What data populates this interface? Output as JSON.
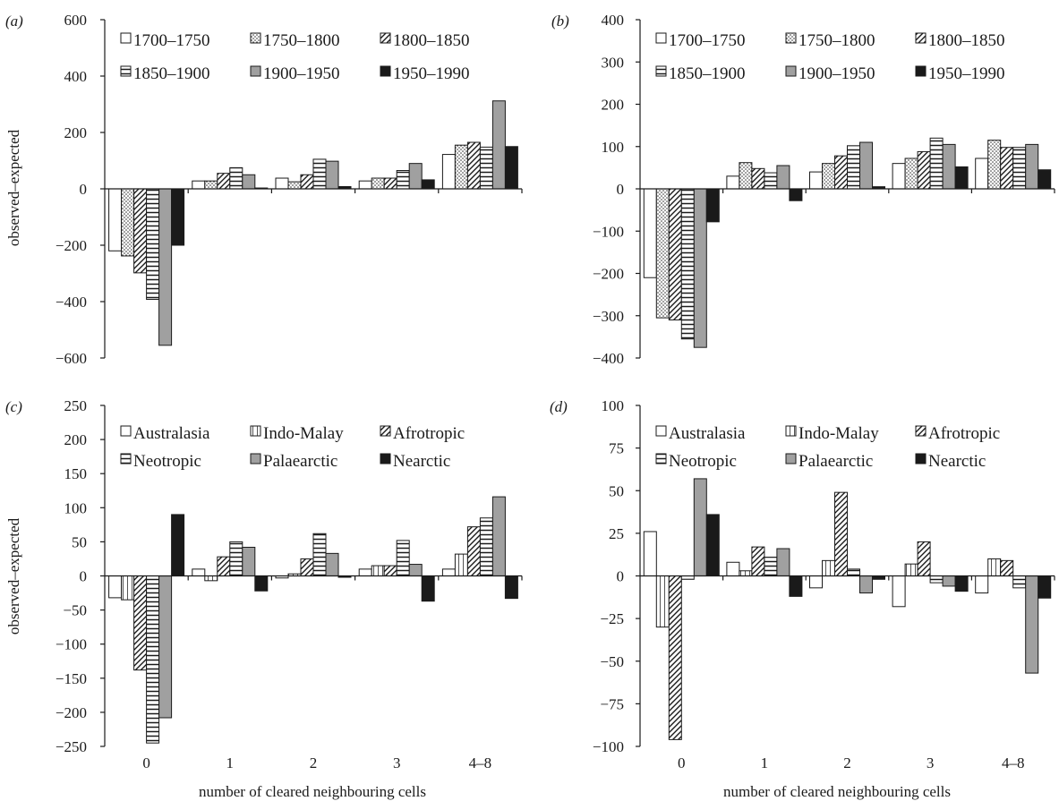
{
  "figure": {
    "x_axis_title": "number of cleared neighbouring cells",
    "y_axis_title": "observed–expected"
  },
  "chart_data": [
    {
      "panel": "(a)",
      "type": "bar",
      "categories": [
        "0",
        "1",
        "2",
        "3",
        "4–8"
      ],
      "ylim": [
        -600,
        600
      ],
      "yticks": [
        600,
        400,
        200,
        0,
        -200,
        -400,
        -600
      ],
      "ytick_labels": [
        "600",
        "400",
        "200",
        "0",
        "−200",
        "−400",
        "−600"
      ],
      "ylabel": "observed–expected",
      "xlabel": "",
      "show_x_tick_labels": false,
      "legend": "top-left",
      "series": [
        {
          "name": "1700–1750",
          "pattern": "white",
          "values": [
            -220,
            28,
            38,
            28,
            122
          ]
        },
        {
          "name": "1750–1800",
          "pattern": "dots",
          "values": [
            -238,
            28,
            25,
            38,
            155
          ]
        },
        {
          "name": "1800–1850",
          "pattern": "diag",
          "values": [
            -298,
            55,
            50,
            38,
            165
          ]
        },
        {
          "name": "1850–1900",
          "pattern": "hlines",
          "values": [
            -392,
            75,
            105,
            65,
            148
          ]
        },
        {
          "name": "1900–1950",
          "pattern": "gray",
          "values": [
            -555,
            50,
            98,
            90,
            312
          ]
        },
        {
          "name": "1950–1990",
          "pattern": "black",
          "values": [
            -200,
            3,
            8,
            32,
            150
          ]
        }
      ]
    },
    {
      "panel": "(b)",
      "type": "bar",
      "categories": [
        "0",
        "1",
        "2",
        "3",
        "4–8"
      ],
      "ylim": [
        -400,
        400
      ],
      "yticks": [
        400,
        300,
        200,
        100,
        0,
        -100,
        -200,
        -300,
        -400
      ],
      "ytick_labels": [
        "400",
        "300",
        "200",
        "100",
        "0",
        "−100",
        "−200",
        "−300",
        "−400"
      ],
      "ylabel": "",
      "xlabel": "",
      "show_x_tick_labels": false,
      "legend": "top-left",
      "series": [
        {
          "name": "1700–1750",
          "pattern": "white",
          "values": [
            -210,
            30,
            40,
            60,
            72
          ]
        },
        {
          "name": "1750–1800",
          "pattern": "dots",
          "values": [
            -305,
            62,
            60,
            72,
            115
          ]
        },
        {
          "name": "1800–1850",
          "pattern": "diag",
          "values": [
            -310,
            48,
            78,
            88,
            98
          ]
        },
        {
          "name": "1850–1900",
          "pattern": "hlines",
          "values": [
            -355,
            38,
            102,
            120,
            98
          ]
        },
        {
          "name": "1900–1950",
          "pattern": "gray",
          "values": [
            -375,
            55,
            110,
            105,
            105
          ]
        },
        {
          "name": "1950–1990",
          "pattern": "black",
          "values": [
            -78,
            -28,
            5,
            52,
            45
          ]
        }
      ]
    },
    {
      "panel": "(c)",
      "type": "bar",
      "categories": [
        "0",
        "1",
        "2",
        "3",
        "4–8"
      ],
      "ylim": [
        -250,
        250
      ],
      "yticks": [
        250,
        200,
        150,
        100,
        50,
        0,
        -50,
        -100,
        -150,
        -200,
        -250
      ],
      "ytick_labels": [
        "250",
        "200",
        "150",
        "100",
        "50",
        "0",
        "−50",
        "−100",
        "−150",
        "−200",
        "−250"
      ],
      "ylabel": "observed–expected",
      "xlabel": "number of cleared neighbouring cells",
      "show_x_tick_labels": true,
      "legend": "top-left",
      "series": [
        {
          "name": "Australasia",
          "pattern": "white",
          "values": [
            -32,
            10,
            -3,
            10,
            10
          ]
        },
        {
          "name": "Indo-Malay",
          "pattern": "vlines",
          "values": [
            -35,
            -7,
            3,
            15,
            32
          ]
        },
        {
          "name": "Afrotropic",
          "pattern": "diag",
          "values": [
            -138,
            28,
            25,
            15,
            72
          ]
        },
        {
          "name": "Neotropic",
          "pattern": "hlines",
          "values": [
            -245,
            50,
            62,
            52,
            85
          ]
        },
        {
          "name": "Palaearctic",
          "pattern": "gray",
          "values": [
            -208,
            42,
            33,
            17,
            116
          ]
        },
        {
          "name": "Nearctic",
          "pattern": "black",
          "values": [
            90,
            -22,
            -2,
            -37,
            -33
          ]
        }
      ]
    },
    {
      "panel": "(d)",
      "type": "bar",
      "categories": [
        "0",
        "1",
        "2",
        "3",
        "4–8"
      ],
      "ylim": [
        -100,
        100
      ],
      "yticks": [
        100,
        75,
        50,
        25,
        0,
        -25,
        -50,
        -75,
        -100
      ],
      "ytick_labels": [
        "100",
        "75",
        "50",
        "25",
        "0",
        "−25",
        "−50",
        "−75",
        "−100"
      ],
      "ylabel": "",
      "xlabel": "number of cleared neighbouring cells",
      "show_x_tick_labels": true,
      "legend": "top-left",
      "series": [
        {
          "name": "Australasia",
          "pattern": "white",
          "values": [
            26,
            8,
            -7,
            -18,
            -10
          ]
        },
        {
          "name": "Indo-Malay",
          "pattern": "vlines",
          "values": [
            -30,
            3,
            9,
            7,
            10
          ]
        },
        {
          "name": "Afrotropic",
          "pattern": "diag",
          "values": [
            -96,
            17,
            49,
            20,
            9
          ]
        },
        {
          "name": "Neotropic",
          "pattern": "hlines",
          "values": [
            -2,
            11,
            4,
            -4,
            -7
          ]
        },
        {
          "name": "Palaearctic",
          "pattern": "gray",
          "values": [
            57,
            16,
            -10,
            -6,
            -57
          ]
        },
        {
          "name": "Nearctic",
          "pattern": "black",
          "values": [
            36,
            -12,
            -2,
            -9,
            -13
          ]
        }
      ]
    }
  ]
}
